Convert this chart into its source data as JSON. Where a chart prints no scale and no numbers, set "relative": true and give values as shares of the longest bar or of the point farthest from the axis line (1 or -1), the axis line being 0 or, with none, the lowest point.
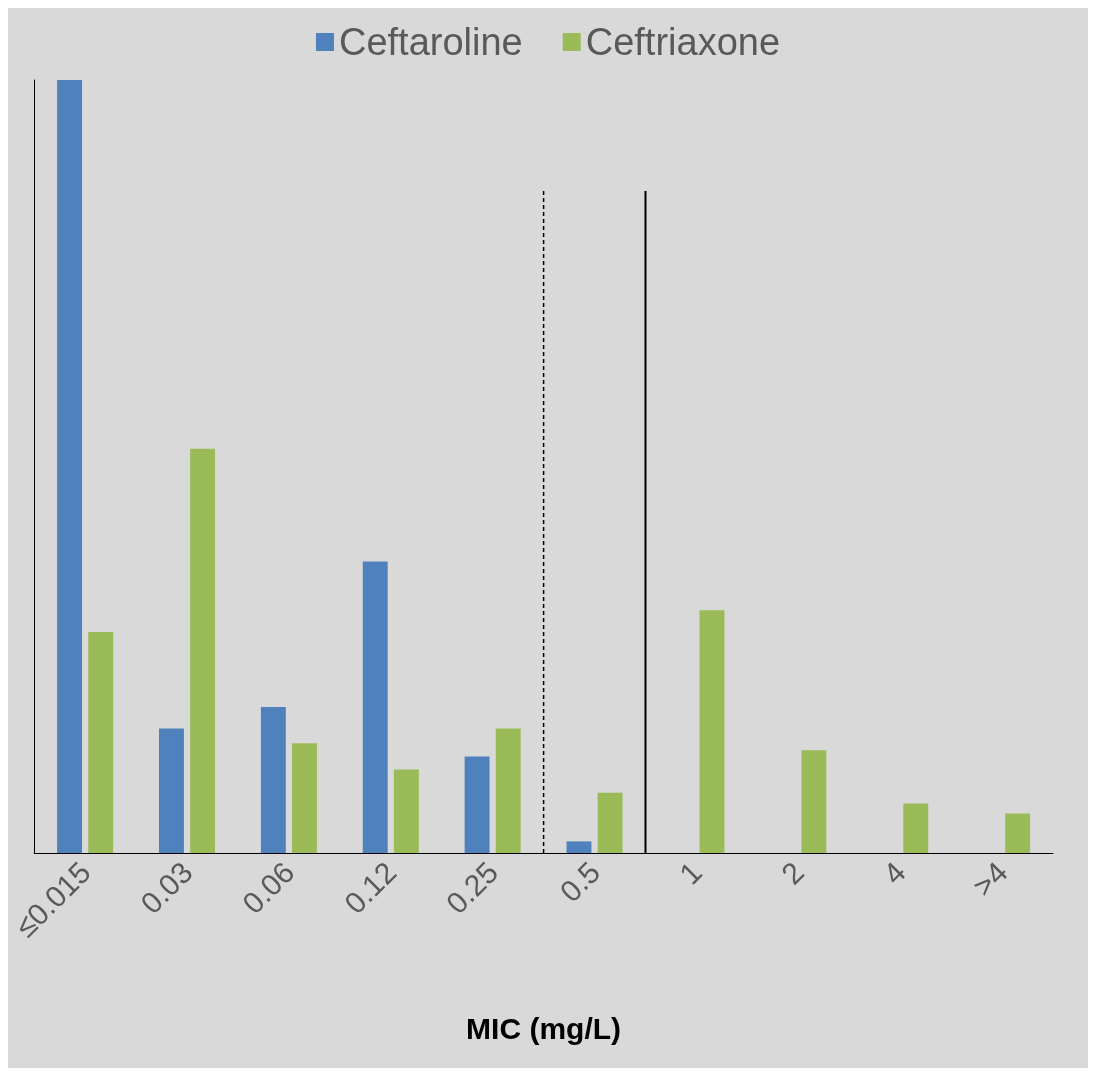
{
  "chart_data": {
    "type": "bar",
    "xlabel": "MIC (mg/L)",
    "relative": true,
    "legend": "top",
    "grid": false,
    "categories": [
      "≤0.015",
      "0.03",
      "0.06",
      "0.12",
      "0.25",
      "0.5",
      "1",
      "2",
      "4",
      ">4"
    ],
    "series": [
      {
        "name": "Ceftaroline",
        "color": "#4f81bd",
        "values": [
          1,
          0.161,
          0.189,
          0.377,
          0.125,
          0.015,
          null,
          null,
          null,
          null
        ]
      },
      {
        "name": "Ceftriaxone",
        "color": "#9bbb59",
        "values": [
          0.286,
          0.523,
          0.142,
          0.108,
          0.161,
          0.078,
          0.314,
          0.133,
          0.064,
          0.051
        ]
      }
    ],
    "ref_lines": [
      {
        "axis": "x",
        "value": "0.5",
        "color": "#000000",
        "line_style": "dashed"
      },
      {
        "axis": "x",
        "value": "1",
        "color": "#000000",
        "line_style": "solid"
      }
    ]
  }
}
